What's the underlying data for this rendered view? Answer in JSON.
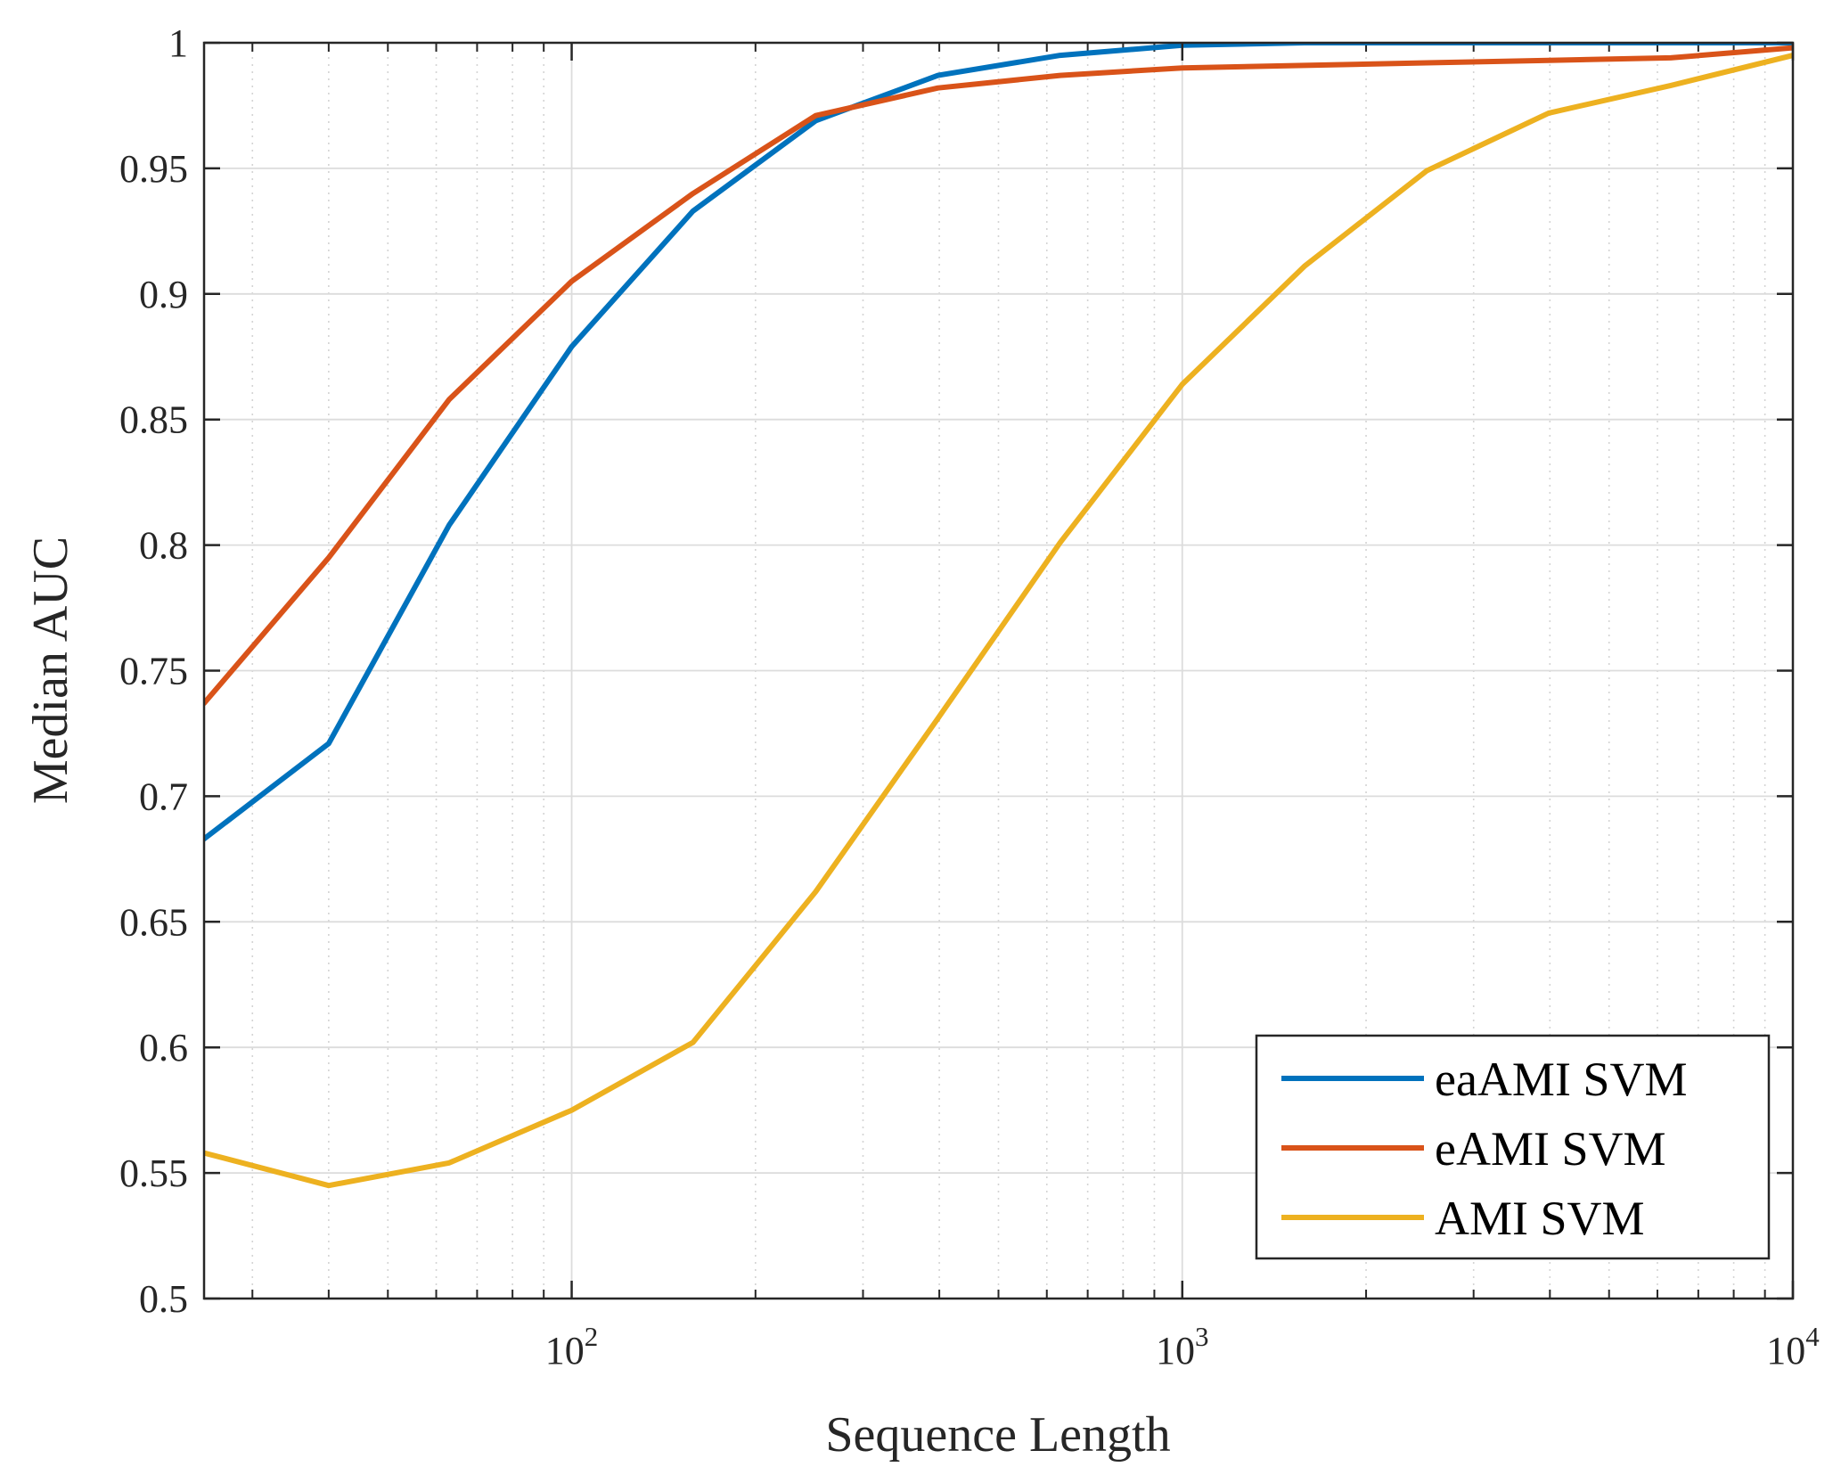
{
  "chart_data": {
    "type": "line",
    "title": "",
    "xlabel": "Sequence Length",
    "ylabel": "Median AUC",
    "xscale": "log",
    "xlim": [
      25,
      10000
    ],
    "ylim": [
      0.5,
      1
    ],
    "grid": true,
    "minor_grid_x": true,
    "legend_position": "bottom-right",
    "y_ticks": [
      0.5,
      0.55,
      0.6,
      0.65,
      0.7,
      0.75,
      0.8,
      0.85,
      0.9,
      0.95,
      1
    ],
    "y_tick_labels": [
      "0.5",
      "0.55",
      "0.6",
      "0.65",
      "0.7",
      "0.75",
      "0.8",
      "0.85",
      "0.9",
      "0.95",
      "1"
    ],
    "x_ticks": [
      {
        "value": 100,
        "base": "10",
        "exp": "2"
      },
      {
        "value": 1000,
        "base": "10",
        "exp": "3"
      },
      {
        "value": 10000,
        "base": "10",
        "exp": "4"
      }
    ],
    "series": [
      {
        "name": "eaAMI SVM",
        "color": "#0072BD",
        "points": [
          [
            25,
            0.683
          ],
          [
            40,
            0.721
          ],
          [
            63,
            0.808
          ],
          [
            100,
            0.879
          ],
          [
            158,
            0.933
          ],
          [
            251,
            0.969
          ],
          [
            398,
            0.987
          ],
          [
            631,
            0.995
          ],
          [
            1000,
            0.999
          ],
          [
            1585,
            1.0
          ],
          [
            2512,
            1.0
          ],
          [
            3981,
            1.0
          ],
          [
            6310,
            1.0
          ],
          [
            10000,
            1.0
          ]
        ]
      },
      {
        "name": "eAMI SVM",
        "color": "#D95319",
        "points": [
          [
            25,
            0.737
          ],
          [
            40,
            0.795
          ],
          [
            63,
            0.858
          ],
          [
            100,
            0.905
          ],
          [
            158,
            0.94
          ],
          [
            251,
            0.971
          ],
          [
            398,
            0.982
          ],
          [
            631,
            0.987
          ],
          [
            1000,
            0.99
          ],
          [
            1585,
            0.991
          ],
          [
            2512,
            0.992
          ],
          [
            3981,
            0.993
          ],
          [
            6310,
            0.994
          ],
          [
            10000,
            0.998
          ]
        ]
      },
      {
        "name": "AMI SVM",
        "color": "#EDB120",
        "points": [
          [
            25,
            0.558
          ],
          [
            40,
            0.545
          ],
          [
            63,
            0.554
          ],
          [
            100,
            0.575
          ],
          [
            158,
            0.602
          ],
          [
            251,
            0.662
          ],
          [
            398,
            0.731
          ],
          [
            631,
            0.801
          ],
          [
            1000,
            0.864
          ],
          [
            1585,
            0.911
          ],
          [
            2512,
            0.949
          ],
          [
            3981,
            0.972
          ],
          [
            6310,
            0.983
          ],
          [
            10000,
            0.995
          ]
        ]
      }
    ]
  }
}
